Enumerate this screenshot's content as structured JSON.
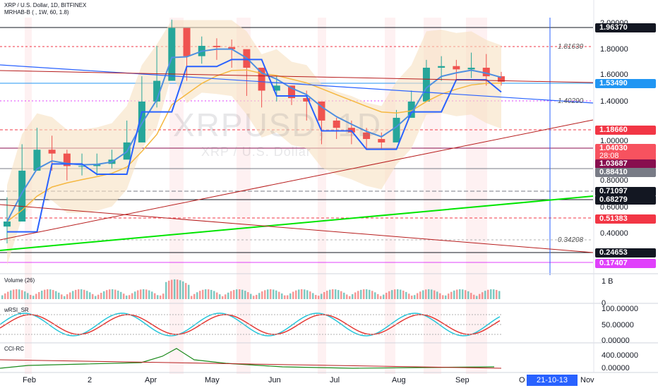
{
  "header": {
    "symbol_line": "XRP / U.S. Dollar, 1D, BITFINEX",
    "indicator_line": "MRHAB-B ( , 1W, 60, 1.8)"
  },
  "watermark": {
    "ticker": "XRPUSD, 1D",
    "name": "XRP / U.S. Dollar"
  },
  "price_axis": {
    "labels": [
      "2.00000",
      "1.80000",
      "1.60000",
      "1.40000",
      "1.00000",
      "0.80000",
      "0.60000",
      "0.40000"
    ]
  },
  "price_tags": [
    {
      "value": "1.96370",
      "bg": "#131722",
      "fg": "#ffffff"
    },
    {
      "value": "1.53490",
      "bg": "#2196f3",
      "fg": "#ffffff"
    },
    {
      "value": "1.18660",
      "bg": "#f23645",
      "fg": "#ffffff"
    },
    {
      "value": "1.04030",
      "bg": "#f7525f",
      "fg": "#ffffff"
    },
    {
      "value": "28:08",
      "bg": "#f7525f",
      "fg": "#ffffff"
    },
    {
      "value": "1.03687",
      "bg": "#880e4f",
      "fg": "#ffffff"
    },
    {
      "value": "0.88410",
      "bg": "#787b86",
      "fg": "#ffffff"
    },
    {
      "value": "0.71097",
      "bg": "#131722",
      "fg": "#ffffff"
    },
    {
      "value": "0.68279",
      "bg": "#131722",
      "fg": "#ffffff"
    },
    {
      "value": "0.51383",
      "bg": "#f23645",
      "fg": "#ffffff"
    },
    {
      "value": "0.24653",
      "bg": "#131722",
      "fg": "#ffffff"
    },
    {
      "value": "0.17407",
      "bg": "#e040fb",
      "fg": "#ffffff"
    }
  ],
  "fib_labels": [
    "1.81630",
    "1.40290",
    "0.34208"
  ],
  "panes": {
    "volume": {
      "title": "Volume (26)",
      "axis": [
        "1 B",
        "0"
      ]
    },
    "wrsi": {
      "title": "wRSI_SR",
      "axis": [
        "100.00000",
        "50.00000",
        "0.00000"
      ]
    },
    "cci": {
      "title": "CCI-RC",
      "axis": [
        "400.00000",
        "0.00000"
      ]
    }
  },
  "time_axis": {
    "labels": [
      "Feb",
      "2",
      "Apr",
      "May",
      "Jun",
      "Jul",
      "Aug",
      "Sep",
      "O",
      "Nov"
    ],
    "cursor_date": "21-10-13"
  },
  "colors": {
    "up": "#26a69a",
    "down": "#ef5350",
    "ema_fast": "#4e8fe0",
    "ema_slow": "#f5b841",
    "band_fill": "#f7e1c2",
    "trend_green": "#00e500",
    "trend_red": "#b71c1c",
    "trend_blue": "#2962ff"
  },
  "chart_data": {
    "type": "candlestick",
    "series_note": "XRP / U.S. Dollar daily",
    "x": [
      "Jan-25",
      "Feb-01",
      "Feb-08",
      "Feb-15",
      "Feb-22",
      "Mar-01",
      "Mar-08",
      "Mar-15",
      "Mar-22",
      "Mar-29",
      "Apr-05",
      "Apr-12",
      "Apr-19",
      "Apr-26",
      "May-03",
      "May-10",
      "May-17",
      "May-24",
      "May-31",
      "Jun-07",
      "Jun-14",
      "Jun-21",
      "Jun-28",
      "Jul-05",
      "Jul-12",
      "Jul-19",
      "Jul-26",
      "Aug-02",
      "Aug-09",
      "Aug-16",
      "Aug-23",
      "Aug-30",
      "Sep-06",
      "Sep-13"
    ],
    "close": [
      0.25,
      0.42,
      0.52,
      0.5,
      0.44,
      0.44,
      0.45,
      0.47,
      0.56,
      0.85,
      1.05,
      1.8,
      1.35,
      1.5,
      1.48,
      1.45,
      1.2,
      0.95,
      1.0,
      0.88,
      0.85,
      0.7,
      0.65,
      0.62,
      0.58,
      0.56,
      0.72,
      0.85,
      1.2,
      1.22,
      1.18,
      1.2,
      1.1,
      1.04
    ],
    "high": [
      0.32,
      0.55,
      0.65,
      0.6,
      0.52,
      0.5,
      0.5,
      0.52,
      0.7,
      1.1,
      1.5,
      1.96,
      1.65,
      1.65,
      1.62,
      1.6,
      1.4,
      1.15,
      1.1,
      1.0,
      0.95,
      0.82,
      0.72,
      0.7,
      0.65,
      0.62,
      0.78,
      0.95,
      1.3,
      1.35,
      1.3,
      1.4,
      1.38,
      1.15
    ],
    "low": [
      0.2,
      0.35,
      0.42,
      0.42,
      0.38,
      0.4,
      0.4,
      0.43,
      0.5,
      0.62,
      0.8,
      1.25,
      1.05,
      1.25,
      1.3,
      1.2,
      0.9,
      0.8,
      0.85,
      0.82,
      0.7,
      0.55,
      0.58,
      0.55,
      0.52,
      0.52,
      0.58,
      0.72,
      0.88,
      1.05,
      1.05,
      1.08,
      1.0,
      1.0
    ],
    "ylim": [
      0.15,
      2.0
    ]
  }
}
